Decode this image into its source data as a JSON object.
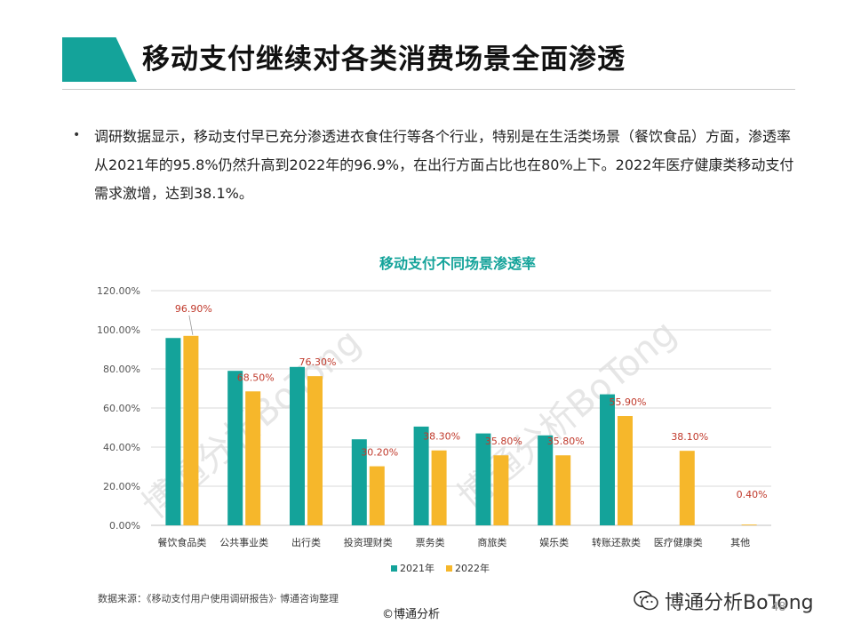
{
  "slide": {
    "title": "移动支付继续对各类消费场景全面渗透",
    "bullet": "调研数据显示，移动支付早已充分渗透进衣食住行等各个行业，特别是在生活类场景（餐饮食品）方面，渗透率从2021年的95.8%仍然升高到2022年的96.9%，在出行方面占比也在80%上下。2022年医疗健康类移动支付需求激增，达到38.1%。"
  },
  "chart_data": {
    "type": "bar",
    "title": "移动支付不同场景渗透率",
    "categories": [
      "餐饮食品类",
      "公共事业类",
      "出行类",
      "投资理财类",
      "票务类",
      "商旅类",
      "娱乐类",
      "转账还款类",
      "医疗健康类",
      "其他"
    ],
    "series": [
      {
        "name": "2021年",
        "values": [
          95.8,
          79.0,
          81.0,
          44.0,
          50.5,
          47.0,
          46.0,
          67.0,
          null,
          null
        ],
        "color": "#14a39a"
      },
      {
        "name": "2022年",
        "values": [
          96.9,
          68.5,
          76.3,
          30.2,
          38.3,
          35.8,
          35.8,
          55.9,
          38.1,
          0.4
        ],
        "color": "#f6b72b"
      }
    ],
    "data_labels": [
      "96.90%",
      "68.50%",
      "76.30%",
      "30.20%",
      "38.30%",
      "35.80%",
      "35.80%",
      "55.90%",
      "38.10%",
      "0.40%"
    ],
    "yticks": [
      "0.00%",
      "20.00%",
      "40.00%",
      "60.00%",
      "80.00%",
      "100.00%",
      "120.00%"
    ],
    "ylim": [
      0,
      120
    ],
    "grid": true,
    "legend_position": "bottom",
    "label_color": "#c0392b",
    "title_color": "#14a39a"
  },
  "watermark": "博通分析BoTong",
  "footer": {
    "source": "数据来源：《移动支付用户使用调研报告》· 博通咨询整理",
    "copyright": "©博通分析",
    "wechat": "博通分析BoTong",
    "page": "48"
  }
}
